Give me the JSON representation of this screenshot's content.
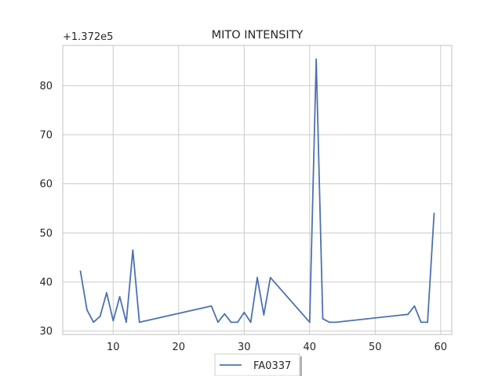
{
  "chart_data": {
    "type": "line",
    "title": "MITO INTENSITY",
    "xlabel": "",
    "ylabel": "",
    "y_offset_label": "+1.372e5",
    "xlim": [
      2.3,
      61.7
    ],
    "ylim": [
      29.3,
      88.2
    ],
    "x_ticks": [
      10,
      20,
      30,
      40,
      50,
      60
    ],
    "y_ticks": [
      30,
      40,
      50,
      60,
      70,
      80
    ],
    "grid": true,
    "legend_position": "bottom-center",
    "series": [
      {
        "name": "FA0337",
        "color": "#4c72b0",
        "x": [
          5,
          6,
          7,
          8,
          9,
          10,
          11,
          12,
          13,
          14,
          25,
          26,
          27,
          28,
          29,
          30,
          31,
          32,
          33,
          34,
          40,
          41,
          42,
          43,
          44,
          55,
          56,
          57,
          58,
          59
        ],
        "y": [
          42.2,
          34.3,
          31.8,
          33.0,
          37.8,
          32.1,
          37.0,
          31.8,
          46.5,
          31.8,
          35.1,
          31.8,
          33.5,
          31.8,
          31.8,
          33.8,
          31.8,
          40.9,
          33.3,
          40.9,
          31.8,
          85.4,
          32.5,
          31.8,
          31.8,
          33.4,
          35.1,
          31.8,
          31.8,
          54.0
        ]
      }
    ]
  }
}
